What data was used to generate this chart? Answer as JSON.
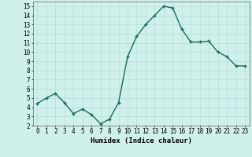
{
  "x": [
    0,
    1,
    2,
    3,
    4,
    5,
    6,
    7,
    8,
    9,
    10,
    11,
    12,
    13,
    14,
    15,
    16,
    17,
    18,
    19,
    20,
    21,
    22,
    23
  ],
  "y": [
    4.4,
    5.0,
    5.5,
    4.5,
    3.3,
    3.8,
    3.2,
    2.2,
    2.7,
    4.5,
    9.5,
    11.7,
    13.0,
    14.0,
    15.0,
    14.8,
    12.5,
    11.1,
    11.1,
    11.2,
    10.0,
    9.5,
    8.5,
    8.5
  ],
  "line_color": "#1a6b5a",
  "marker": "+",
  "marker_size": 3.0,
  "bg_color": "#cff0eb",
  "grid_color": "#b8deda",
  "xlabel": "Humidex (Indice chaleur)",
  "xlim": [
    -0.5,
    23.5
  ],
  "ylim": [
    2,
    15.5
  ],
  "yticks": [
    2,
    3,
    4,
    5,
    6,
    7,
    8,
    9,
    10,
    11,
    12,
    13,
    14,
    15
  ],
  "xticks": [
    0,
    1,
    2,
    3,
    4,
    5,
    6,
    7,
    8,
    9,
    10,
    11,
    12,
    13,
    14,
    15,
    16,
    17,
    18,
    19,
    20,
    21,
    22,
    23
  ],
  "xtick_labels": [
    "0",
    "1",
    "2",
    "3",
    "4",
    "5",
    "6",
    "7",
    "8",
    "9",
    "10",
    "11",
    "12",
    "13",
    "14",
    "15",
    "16",
    "17",
    "18",
    "19",
    "20",
    "21",
    "22",
    "23"
  ],
  "label_fontsize": 6.5,
  "tick_fontsize": 5.5,
  "linewidth": 1.0
}
